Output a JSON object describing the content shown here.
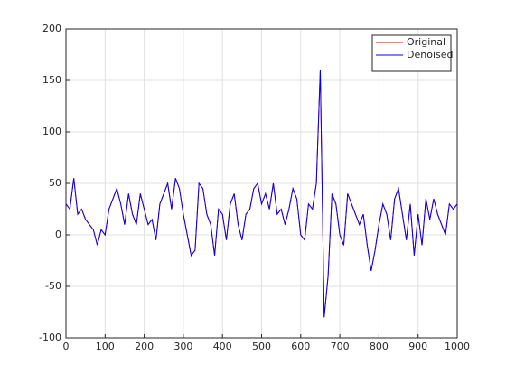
{
  "chart_data": {
    "type": "line",
    "x": [
      0,
      10,
      20,
      30,
      40,
      50,
      60,
      70,
      80,
      90,
      100,
      110,
      120,
      130,
      140,
      150,
      160,
      170,
      180,
      190,
      200,
      210,
      220,
      230,
      240,
      250,
      260,
      270,
      280,
      290,
      300,
      310,
      320,
      330,
      340,
      350,
      360,
      370,
      380,
      390,
      400,
      410,
      420,
      430,
      440,
      450,
      460,
      470,
      480,
      490,
      500,
      510,
      520,
      530,
      540,
      550,
      560,
      570,
      580,
      590,
      600,
      610,
      620,
      630,
      640,
      650,
      660,
      670,
      680,
      690,
      700,
      710,
      720,
      730,
      740,
      750,
      760,
      770,
      780,
      790,
      800,
      810,
      820,
      830,
      840,
      850,
      860,
      870,
      880,
      890,
      900,
      910,
      920,
      930,
      940,
      950,
      960,
      970,
      980,
      990,
      1000
    ],
    "series": [
      {
        "name": "Original",
        "color": "#ff0000",
        "values": [
          30,
          25,
          55,
          20,
          25,
          15,
          10,
          5,
          -10,
          5,
          0,
          25,
          35,
          45,
          30,
          10,
          40,
          20,
          10,
          40,
          25,
          10,
          15,
          -5,
          30,
          40,
          50,
          25,
          55,
          45,
          20,
          0,
          -20,
          -15,
          50,
          45,
          20,
          10,
          -20,
          25,
          20,
          -5,
          30,
          40,
          10,
          -5,
          20,
          25,
          45,
          50,
          30,
          40,
          25,
          50,
          20,
          25,
          10,
          25,
          45,
          35,
          0,
          -5,
          30,
          25,
          50,
          160,
          -80,
          -40,
          40,
          30,
          0,
          -10,
          40,
          30,
          20,
          10,
          20,
          -10,
          -35,
          -15,
          10,
          30,
          20,
          -5,
          35,
          45,
          20,
          -5,
          30,
          -20,
          20,
          -10,
          35,
          15,
          35,
          20,
          10,
          0,
          30,
          25,
          30
        ]
      },
      {
        "name": "Denoised",
        "color": "#0000ff",
        "values": [
          30,
          25,
          55,
          20,
          25,
          15,
          10,
          5,
          -10,
          5,
          0,
          25,
          35,
          45,
          30,
          10,
          40,
          20,
          10,
          40,
          25,
          10,
          15,
          -5,
          30,
          40,
          50,
          25,
          55,
          45,
          20,
          0,
          -20,
          -15,
          50,
          45,
          20,
          10,
          -20,
          25,
          20,
          -5,
          30,
          40,
          10,
          -5,
          20,
          25,
          45,
          50,
          30,
          40,
          25,
          50,
          20,
          25,
          10,
          25,
          45,
          35,
          0,
          -5,
          30,
          25,
          50,
          160,
          -80,
          -40,
          40,
          30,
          0,
          -10,
          40,
          30,
          20,
          10,
          20,
          -10,
          -35,
          -15,
          10,
          30,
          20,
          -5,
          35,
          45,
          20,
          -5,
          30,
          -20,
          20,
          -10,
          35,
          15,
          35,
          20,
          10,
          0,
          30,
          25,
          30
        ]
      }
    ],
    "xlim": [
      0,
      1000
    ],
    "xticks": [
      0,
      100,
      200,
      300,
      400,
      500,
      600,
      700,
      800,
      900,
      1000
    ],
    "ylim": [
      -100,
      200
    ],
    "yticks": [
      -100,
      -50,
      0,
      50,
      100,
      150,
      200
    ],
    "grid": true,
    "legend": "top-right"
  }
}
